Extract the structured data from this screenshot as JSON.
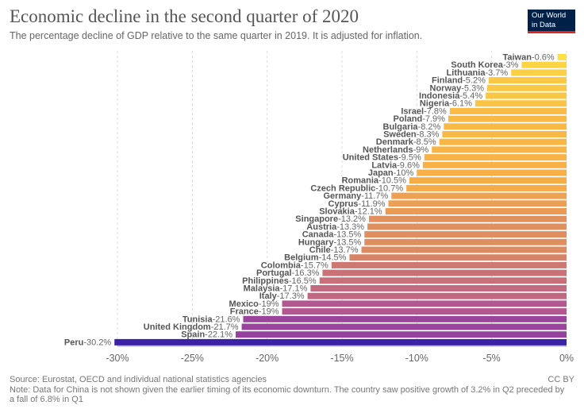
{
  "header": {
    "title": "Economic decline in the second quarter of 2020",
    "subtitle": "The percentage decline of GDP relative to the same quarter in 2019. It is adjusted for inflation.",
    "logo_line1": "Our World",
    "logo_line2": "in Data"
  },
  "chart_data": {
    "type": "bar",
    "orientation": "horizontal",
    "title": "Economic decline in the second quarter of 2020",
    "subtitle": "The percentage decline of GDP relative to the same quarter in 2019. It is adjusted for inflation.",
    "xlim": [
      -30,
      0
    ],
    "xticks": [
      -30,
      -25,
      -20,
      -15,
      -10,
      -5,
      0
    ],
    "xtick_labels": [
      "-30%",
      "-25%",
      "-20%",
      "-15%",
      "-10%",
      "-5%",
      "0%"
    ],
    "grid": "vertical dashed",
    "color_scale": [
      "#3b22a6",
      "#a8499b",
      "#f7ad46",
      "#fde043"
    ],
    "categories": [
      "Taiwan",
      "South Korea",
      "Lithuania",
      "Finland",
      "Norway",
      "Indonesia",
      "Nigeria",
      "Israel",
      "Poland",
      "Bulgaria",
      "Sweden",
      "Denmark",
      "Netherlands",
      "United States",
      "Latvia",
      "Japan",
      "Romania",
      "Czech Republic",
      "Germany",
      "Cyprus",
      "Slovakia",
      "Singapore",
      "Austria",
      "Canada",
      "Hungary",
      "Chile",
      "Belgium",
      "Colombia",
      "Portugal",
      "Philippines",
      "Malaysia",
      "Italy",
      "Mexico",
      "France",
      "Tunisia",
      "United Kingdom",
      "Spain",
      "Peru"
    ],
    "values": [
      -0.6,
      -3,
      -3.7,
      -5.2,
      -5.3,
      -5.4,
      -6.1,
      -7.8,
      -7.9,
      -8.2,
      -8.3,
      -8.5,
      -9,
      -9.5,
      -9.6,
      -10,
      -10.5,
      -10.7,
      -11.7,
      -11.9,
      -12.1,
      -13.2,
      -13.3,
      -13.5,
      -13.5,
      -13.7,
      -14.5,
      -15.7,
      -16.3,
      -16.5,
      -17.1,
      -17.3,
      -19,
      -19,
      -21.6,
      -21.7,
      -22.1,
      -30.2
    ],
    "value_labels": [
      "-0.6%",
      "-3%",
      "-3.7%",
      "-5.2%",
      "-5.3%",
      "-5.4%",
      "-6.1%",
      "-7.8%",
      "-7.9%",
      "-8.2%",
      "-8.3%",
      "-8.5%",
      "-9%",
      "-9.5%",
      "-9.6%",
      "-10%",
      "-10.5%",
      "-10.7%",
      "-11.7%",
      "-11.9%",
      "-12.1%",
      "-13.2%",
      "-13.3%",
      "-13.5%",
      "-13.5%",
      "-13.7%",
      "-14.5%",
      "-15.7%",
      "-16.3%",
      "-16.5%",
      "-17.1%",
      "-17.3%",
      "-19%",
      "-19%",
      "-21.6%",
      "-21.7%",
      "-22.1%",
      "-30.2%"
    ]
  },
  "footer": {
    "source": "Source: Eurostat, OECD and individual national statistics agencies",
    "license": "CC BY",
    "note": "Note: Data for China is not shown given the earlier timing of its economic downturn. The country saw positive growth of 3.2% in Q2 preceded by",
    "note_line2": "a fall of 6.8% in Q1"
  }
}
